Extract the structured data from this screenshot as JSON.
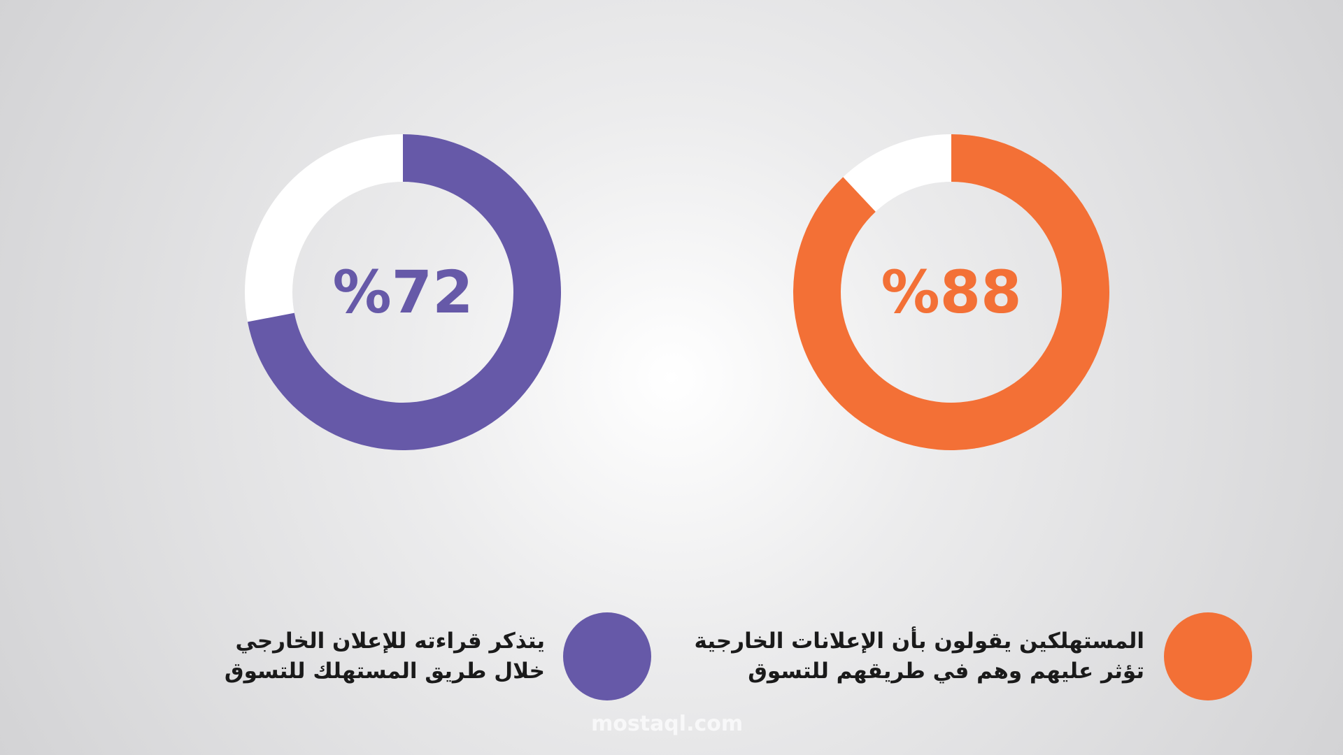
{
  "chart_data": [
    {
      "type": "donut",
      "value": 72,
      "value_label": "%72",
      "color": "#6659a8",
      "label": [
        "يتذكر قراءته للإعلان الخارجي",
        "خلال طريق المستهلك للتسوق"
      ]
    },
    {
      "type": "donut",
      "value": 88,
      "value_label": "%88",
      "color": "#f37036",
      "label": [
        "المستهلكين يقولون بأن الإعلانات الخارجية",
        "تؤثر عليهم وهم في طريقهم للتسوق"
      ]
    }
  ],
  "watermark": "mostaql.com"
}
